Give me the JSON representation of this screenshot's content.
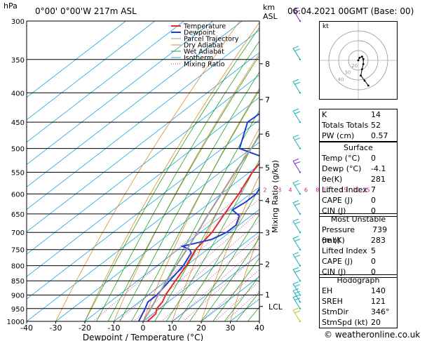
{
  "header": {
    "location": "0°00'  0°00'W  217m  ASL",
    "datetime": "06.04.2021  00GMT  (Base: 00)",
    "hpa_label": "hPa",
    "km_label": "km",
    "asl_label": "ASL"
  },
  "legend": [
    "Temperature",
    "Dewpoint",
    "Parcel Trajectory",
    "Dry Adiabat",
    "Wet Adiabat",
    "Isotherm",
    "Mixing Ratio"
  ],
  "colors": {
    "temperature": "#e8262a",
    "dewpoint": "#1d3bd6",
    "parcel": "#9a9a9a",
    "dry_adiabat": "#e08a2c",
    "wet_adiabat": "#27a427",
    "isotherm": "#19a3e0",
    "mixing_ratio": "#d4169e",
    "wind": "#16b0b8"
  },
  "axes": {
    "xlabel": "Dewpoint / Temperature (°C)",
    "mixing_label": "Mixing Ratio (g/kg)",
    "lcl_label": "LCL",
    "pressure_ticks": [
      300,
      350,
      400,
      450,
      500,
      550,
      600,
      650,
      700,
      750,
      800,
      850,
      900,
      950,
      1000
    ],
    "temp_ticks": [
      -40,
      -30,
      -20,
      -10,
      0,
      10,
      20,
      30,
      40
    ],
    "km_ticks": [
      1,
      2,
      3,
      4,
      5,
      6,
      7,
      8
    ],
    "mixing_ticks": [
      "1",
      "2",
      "3",
      "4",
      "6",
      "8",
      "10",
      "15",
      "20",
      "25"
    ]
  },
  "chart_data": {
    "type": "line",
    "title": "",
    "xlabel": "Dewpoint / Temperature (°C)",
    "ylabel": "hPa",
    "xlim": [
      -40,
      40
    ],
    "ylim": [
      1000,
      300
    ],
    "series": [
      {
        "name": "Temperature",
        "points": [
          [
            1000,
            1.5
          ],
          [
            970,
            1
          ],
          [
            950,
            -1
          ],
          [
            925,
            -2
          ],
          [
            900,
            -4
          ],
          [
            850,
            -7
          ],
          [
            800,
            -10
          ],
          [
            750,
            -14
          ],
          [
            700,
            -16
          ],
          [
            650,
            -20
          ],
          [
            600,
            -24
          ],
          [
            550,
            -29
          ],
          [
            500,
            -33
          ],
          [
            450,
            -39
          ],
          [
            400,
            -46
          ],
          [
            350,
            -53
          ],
          [
            300,
            -55
          ]
        ]
      },
      {
        "name": "Dewpoint",
        "points": [
          [
            1000,
            -1.5
          ],
          [
            950,
            -5
          ],
          [
            925,
            -7
          ],
          [
            900,
            -7
          ],
          [
            850,
            -9
          ],
          [
            800,
            -11
          ],
          [
            760,
            -14
          ],
          [
            750,
            -16
          ],
          [
            740,
            -20
          ],
          [
            720,
            -13
          ],
          [
            700,
            -11
          ],
          [
            680,
            -11
          ],
          [
            655,
            -14
          ],
          [
            640,
            -19
          ],
          [
            620,
            -18
          ],
          [
            600,
            -18
          ],
          [
            570,
            -21
          ],
          [
            550,
            -22
          ],
          [
            530,
            -24
          ],
          [
            500,
            -44
          ],
          [
            450,
            -53
          ],
          [
            400,
            -52
          ],
          [
            380,
            -54
          ],
          [
            350,
            -56
          ],
          [
            330,
            -57
          ],
          [
            300,
            -63
          ]
        ]
      },
      {
        "name": "Parcel Trajectory",
        "points": [
          [
            1000,
            0
          ],
          [
            950,
            -3
          ],
          [
            900,
            -6.5
          ],
          [
            850,
            -10
          ],
          [
            800,
            -13.5
          ],
          [
            750,
            -17
          ],
          [
            700,
            -21
          ],
          [
            650,
            -25.5
          ],
          [
            600,
            -30
          ],
          [
            550,
            -35
          ],
          [
            500,
            -40
          ],
          [
            450,
            -46
          ],
          [
            400,
            -52
          ],
          [
            350,
            -59
          ],
          [
            300,
            -66
          ]
        ]
      }
    ],
    "lcl_pressure": 942,
    "wind_barbs": [
      {
        "p": 1000,
        "color": "#c8c81e"
      },
      {
        "p": 950
      },
      {
        "p": 925
      },
      {
        "p": 900
      },
      {
        "p": 850
      },
      {
        "p": 800
      },
      {
        "p": 750
      },
      {
        "p": 700
      },
      {
        "p": 650
      },
      {
        "p": 600
      },
      {
        "p": 550,
        "color": "#8a2be2"
      },
      {
        "p": 500
      },
      {
        "p": 450
      },
      {
        "p": 400
      },
      {
        "p": 350
      },
      {
        "p": 300,
        "color": "#8a2be2"
      }
    ]
  },
  "hodograph": {
    "label": "kt",
    "ring_labels": [
      "40",
      "30",
      "20"
    ],
    "trace": [
      [
        0,
        0
      ],
      [
        1,
        -2
      ],
      [
        3,
        -3
      ],
      [
        4,
        -1
      ],
      [
        4,
        3
      ],
      [
        3,
        7
      ],
      [
        2,
        12
      ],
      [
        5,
        16
      ],
      [
        8,
        20
      ]
    ]
  },
  "indices": [
    {
      "label": "K",
      "value": "14"
    },
    {
      "label": "Totals Totals",
      "value": "52"
    },
    {
      "label": "PW (cm)",
      "value": "0.57"
    }
  ],
  "surface": {
    "title": "Surface",
    "rows": [
      {
        "label": "Temp (°C)",
        "value": "0"
      },
      {
        "label": "Dewp (°C)",
        "value": "-4.1"
      },
      {
        "label": "θe(K)",
        "value": "281"
      },
      {
        "label": "Lifted Index",
        "value": "7"
      },
      {
        "label": "CAPE (J)",
        "value": "0"
      },
      {
        "label": "CIN (J)",
        "value": "0"
      }
    ]
  },
  "unstable": {
    "title": "Most Unstable",
    "rows": [
      {
        "label": "Pressure (mb)",
        "value": "739"
      },
      {
        "label": "θe (K)",
        "value": "283"
      },
      {
        "label": "Lifted Index",
        "value": "5"
      },
      {
        "label": "CAPE (J)",
        "value": "0"
      },
      {
        "label": "CIN (J)",
        "value": "0"
      }
    ]
  },
  "hodo_stats": {
    "title": "Hodograph",
    "rows": [
      {
        "label": "EH",
        "value": "140"
      },
      {
        "label": "SREH",
        "value": "121"
      },
      {
        "label": "StmDir",
        "value": "346°"
      },
      {
        "label": "StmSpd (kt)",
        "value": "20"
      }
    ]
  },
  "copyright": "© weatheronline.co.uk"
}
